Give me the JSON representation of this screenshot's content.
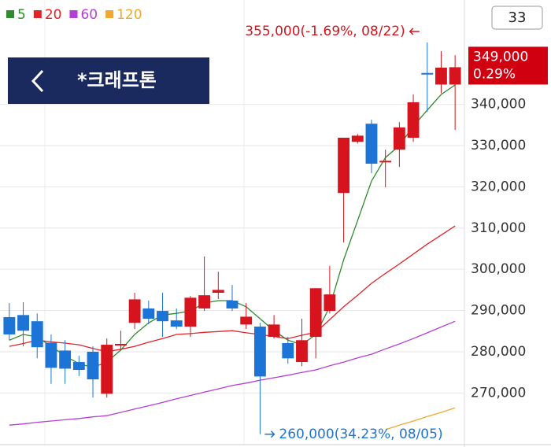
{
  "ui": {
    "badge": "33",
    "title": "*크래프톤"
  },
  "chart_data": {
    "type": "candlestick",
    "up_color": "#d7141e",
    "down_color": "#1c74d6",
    "ylim": [
      256900,
      365300
    ],
    "yticks": [
      {
        "value": 340000,
        "label": "340,000"
      },
      {
        "value": 330000,
        "label": "330,000"
      },
      {
        "value": 320000,
        "label": "320,000"
      },
      {
        "value": 310000,
        "label": "310,000"
      },
      {
        "value": 300000,
        "label": "300,000"
      },
      {
        "value": 290000,
        "label": "290,000"
      },
      {
        "value": 280000,
        "label": "280,000"
      },
      {
        "value": 270000,
        "label": "270,000"
      }
    ],
    "grid": true,
    "candles": {
      "open": [
        288400,
        288900,
        287400,
        282200,
        280300,
        277500,
        280000,
        269800,
        281700,
        287000,
        290500,
        289900,
        287600,
        286100,
        290500,
        294300,
        292400,
        286600,
        286100,
        283600,
        282100,
        277500,
        283600,
        289900,
        318500,
        330900,
        335300,
        326100,
        329000,
        331900,
        347600,
        344800,
        344800
      ],
      "high": [
        291800,
        292000,
        289300,
        284200,
        282800,
        279000,
        281300,
        283200,
        285100,
        294300,
        292400,
        294300,
        290500,
        293500,
        303100,
        299400,
        296200,
        291800,
        287000,
        288900,
        283600,
        288000,
        295400,
        300800,
        331900,
        332800,
        336300,
        329000,
        335700,
        342400,
        355000,
        352900,
        351900
      ],
      "low": [
        282800,
        281300,
        278400,
        272200,
        272200,
        274100,
        268900,
        268900,
        280400,
        285500,
        286700,
        283600,
        285500,
        283600,
        289900,
        292800,
        289900,
        285500,
        260000,
        283200,
        277100,
        276500,
        278400,
        289300,
        306500,
        330500,
        323300,
        319900,
        324800,
        330900,
        338200,
        342700,
        333800
      ],
      "close": [
        284200,
        285100,
        281100,
        276100,
        275900,
        275600,
        273300,
        281700,
        281900,
        292700,
        288000,
        287400,
        286100,
        293100,
        293700,
        295000,
        290500,
        288500,
        274000,
        286600,
        278400,
        282800,
        295400,
        293900,
        331900,
        332400,
        325600,
        326300,
        334400,
        340500,
        347500,
        348900,
        349000
      ]
    },
    "series": [
      {
        "name": "5",
        "color": "#2e8b2e",
        "values": [
          282800,
          284200,
          283600,
          281300,
          279000,
          277100,
          276200,
          277500,
          280400,
          284200,
          287000,
          288900,
          289300,
          289900,
          291800,
          292400,
          292400,
          290900,
          288000,
          285100,
          282800,
          281700,
          284200,
          290900,
          302300,
          311800,
          321400,
          327100,
          330000,
          334700,
          338600,
          342400,
          344700
        ]
      },
      {
        "name": "20",
        "color": "#e0242a",
        "values": [
          281300,
          282000,
          282800,
          282400,
          282100,
          281700,
          280800,
          280000,
          280600,
          281300,
          282300,
          283200,
          284200,
          284400,
          284700,
          284900,
          285100,
          284600,
          284200,
          283700,
          283200,
          284000,
          284700,
          287800,
          290900,
          293700,
          296600,
          299000,
          301300,
          303700,
          306100,
          308300,
          310500
        ]
      },
      {
        "name": "60",
        "color": "#b43fd6",
        "values": [
          262200,
          262500,
          262900,
          263200,
          263500,
          263800,
          264200,
          264500,
          265300,
          266100,
          266900,
          267700,
          268600,
          269400,
          270200,
          271000,
          271800,
          272400,
          273100,
          273700,
          274300,
          275000,
          275600,
          276600,
          277500,
          278500,
          279400,
          280700,
          281900,
          283200,
          284600,
          286000,
          287400
        ]
      },
      {
        "name": "120",
        "color": "#f0a830",
        "values": [
          null,
          null,
          null,
          null,
          null,
          null,
          null,
          null,
          null,
          null,
          null,
          null,
          null,
          null,
          null,
          null,
          null,
          null,
          null,
          null,
          null,
          null,
          null,
          null,
          null,
          null,
          null,
          261100,
          262200,
          263200,
          264300,
          265300,
          266400
        ]
      }
    ],
    "annotations": [
      {
        "label": "355,000(-1.69%, 08/22)",
        "value": 355000,
        "color": "#d7141e"
      },
      {
        "label": "260,000(34.23%, 08/05)",
        "value": 260000,
        "color": "#1c74d6"
      }
    ],
    "current": {
      "label": "349,000",
      "change": "0.29%",
      "value": 349000,
      "color": "#d00010"
    }
  }
}
